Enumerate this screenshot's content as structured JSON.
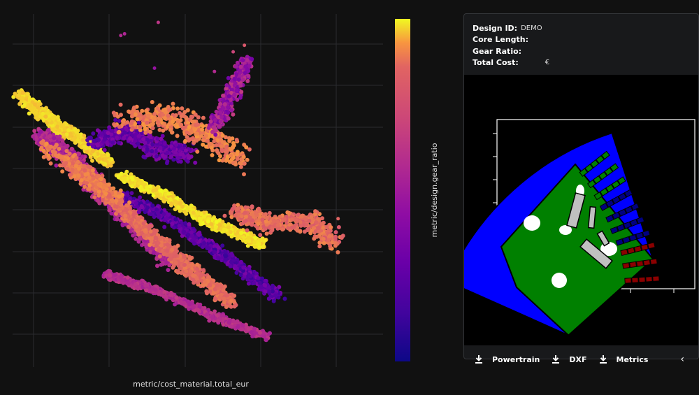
{
  "chart_data": {
    "type": "scatter",
    "xlabel": "metric/cost_material.total_eur",
    "colorbar_label": "metric/design.gear_ratio",
    "colorscale": "plasma",
    "grid": true,
    "tick_labels_visible": false,
    "legend": "none",
    "clusters": [
      {
        "x": [
          0.03,
          0.13,
          0.17,
          0.27
        ],
        "y": [
          0.78,
          0.68,
          0.66,
          0.57
        ],
        "spread": 0.022,
        "n": 900,
        "color": [
          0.92,
          0.98
        ]
      },
      {
        "x": [
          0.08,
          0.17,
          0.24,
          0.33,
          0.43
        ],
        "y": [
          0.66,
          0.58,
          0.49,
          0.39,
          0.27
        ],
        "spread": 0.028,
        "n": 1400,
        "color": [
          0.4,
          0.55
        ]
      },
      {
        "x": [
          0.16,
          0.26,
          0.36,
          0.47,
          0.6
        ],
        "y": [
          0.58,
          0.48,
          0.37,
          0.26,
          0.14
        ],
        "spread": 0.025,
        "n": 1200,
        "color": [
          0.72,
          0.82
        ]
      },
      {
        "x": [
          0.3,
          0.4,
          0.52,
          0.62,
          0.72
        ],
        "y": [
          0.47,
          0.42,
          0.33,
          0.25,
          0.16
        ],
        "spread": 0.02,
        "n": 900,
        "color": [
          0.1,
          0.32
        ]
      },
      {
        "x": [
          0.3,
          0.42,
          0.52,
          0.6,
          0.68
        ],
        "y": [
          0.53,
          0.47,
          0.4,
          0.36,
          0.32
        ],
        "spread": 0.017,
        "n": 800,
        "color": [
          0.93,
          1.0
        ]
      },
      {
        "x": [
          0.26,
          0.4,
          0.55,
          0.69
        ],
        "y": [
          0.23,
          0.18,
          0.1,
          0.04
        ],
        "spread": 0.014,
        "n": 650,
        "color": [
          0.45,
          0.58
        ]
      },
      {
        "x": [
          0.23,
          0.32,
          0.4,
          0.48
        ],
        "y": [
          0.63,
          0.67,
          0.61,
          0.6
        ],
        "spread": 0.035,
        "n": 500,
        "color": [
          0.15,
          0.35
        ]
      },
      {
        "x": [
          0.3,
          0.42,
          0.53,
          0.62
        ],
        "y": [
          0.7,
          0.71,
          0.65,
          0.58
        ],
        "spread": 0.05,
        "n": 450,
        "color": [
          0.75,
          0.88
        ]
      },
      {
        "x": [
          0.55,
          0.6,
          0.64
        ],
        "y": [
          0.68,
          0.79,
          0.89
        ],
        "spread": 0.025,
        "n": 350,
        "color": [
          0.28,
          0.58
        ]
      },
      {
        "x": [
          0.6,
          0.7,
          0.8,
          0.87
        ],
        "y": [
          0.43,
          0.38,
          0.4,
          0.33
        ],
        "spread": 0.035,
        "n": 450,
        "color": [
          0.7,
          0.84
        ]
      },
      {
        "x": [
          0.1,
          0.2,
          0.3
        ],
        "y": [
          0.62,
          0.54,
          0.45
        ],
        "spread": 0.03,
        "n": 250,
        "color": [
          0.75,
          0.86
        ]
      }
    ],
    "outliers": [
      {
        "x": 0.3,
        "y": 0.96,
        "c": 0.5
      },
      {
        "x": 0.31,
        "y": 0.965,
        "c": 0.48
      },
      {
        "x": 0.4,
        "y": 1.0,
        "c": 0.55
      },
      {
        "x": 0.39,
        "y": 0.86,
        "c": 0.4
      },
      {
        "x": 0.55,
        "y": 0.85,
        "c": 0.5
      },
      {
        "x": 0.6,
        "y": 0.91,
        "c": 0.62
      },
      {
        "x": 0.63,
        "y": 0.93,
        "c": 0.7
      },
      {
        "x": 0.88,
        "y": 0.4,
        "c": 0.75
      }
    ]
  },
  "panel": {
    "design_id_label": "Design ID:",
    "design_id_value": "DEMO",
    "core_length_label": "Core Length:",
    "gear_ratio_label": "Gear Ratio:",
    "total_cost_label": "Total Cost:",
    "total_cost_value": "€",
    "powertrain_label": "Powertrain",
    "dxf_label": "DXF",
    "metrics_label": "Metrics",
    "collapse_symbol": "‹"
  },
  "motor": {
    "colors": {
      "stator": "#0000ff",
      "rotor": "#008000",
      "coil_upper": "#008000",
      "coil_lower": "#000080",
      "coil_bottom": "#8b0000",
      "magnet": "#c0c0c0"
    }
  }
}
